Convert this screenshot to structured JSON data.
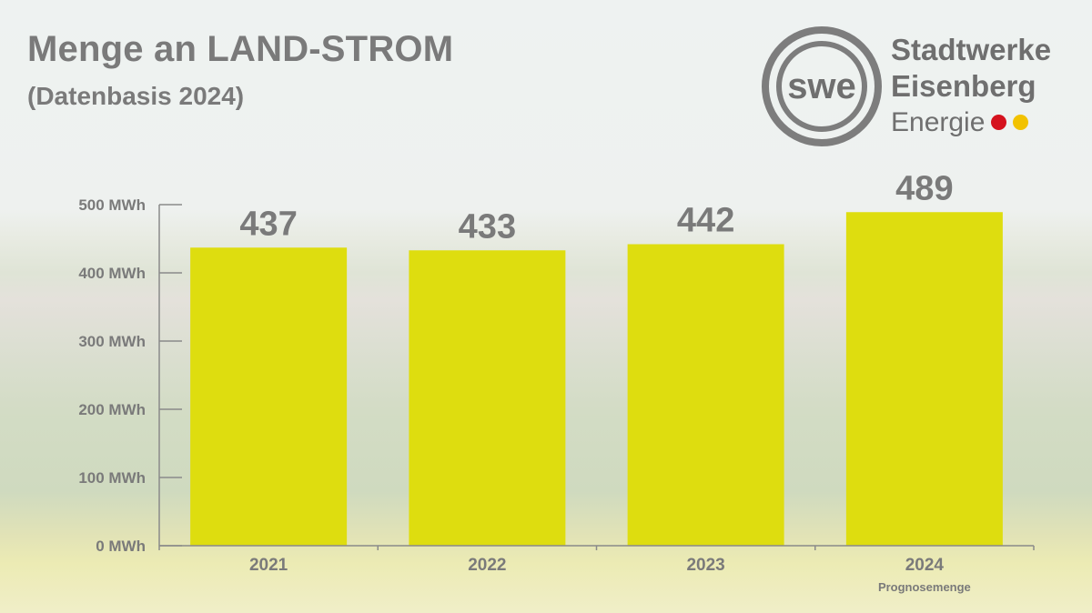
{
  "header": {
    "title": "Menge an LAND-STROM",
    "subtitle": "(Datenbasis 2024)"
  },
  "logo": {
    "mark_text": "swe",
    "line1": "Stadtwerke",
    "line2": "Eisenberg",
    "line3": "Energie"
  },
  "colors": {
    "bar": "#dedd0f",
    "text": "#7a7a7a",
    "axis": "#8a8a8a",
    "dot_red": "#d5121e",
    "dot_yellow": "#f2c200"
  },
  "chart_data": {
    "type": "bar",
    "title": "Menge an LAND-STROM",
    "subtitle": "(Datenbasis 2024)",
    "categories": [
      "2021",
      "2022",
      "2023",
      "2024"
    ],
    "category_notes": [
      "",
      "",
      "",
      "Prognosemenge"
    ],
    "values": [
      437,
      433,
      442,
      489
    ],
    "data_labels": [
      "437",
      "433",
      "442",
      "489"
    ],
    "y_ticks": [
      0,
      100,
      200,
      300,
      400,
      500
    ],
    "y_tick_labels": [
      "0 MWh",
      "100 MWh",
      "200 MWh",
      "300 MWh",
      "400 MWh",
      "500 MWh"
    ],
    "ylim": [
      0,
      500
    ],
    "xlabel": "",
    "ylabel": "",
    "grid": false,
    "legend": "none"
  }
}
